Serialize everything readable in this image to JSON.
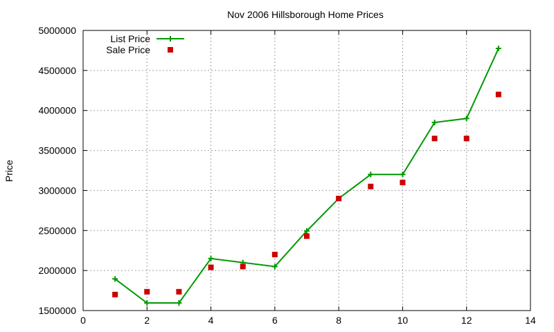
{
  "chart_data": {
    "type": "line",
    "title": "Nov 2006 Hillsborough Home Prices",
    "xlabel": "",
    "ylabel": "Price",
    "xlim": [
      0,
      14
    ],
    "ylim": [
      1500000,
      5000000
    ],
    "xticks": [
      0,
      2,
      4,
      6,
      8,
      10,
      12,
      14
    ],
    "yticks": [
      1500000,
      2000000,
      2500000,
      3000000,
      3500000,
      4000000,
      4500000,
      5000000
    ],
    "xtick_labels": [
      "0",
      "2",
      "4",
      "6",
      "8",
      "10",
      "12",
      "14"
    ],
    "ytick_labels": [
      "1500000",
      "2000000",
      "2500000",
      "3000000",
      "3500000",
      "4000000",
      "4500000",
      "5000000"
    ],
    "grid": true,
    "legend_position": "top-left",
    "series": [
      {
        "name": "List Price",
        "style": "line+plus-markers",
        "color": "#009900",
        "x": [
          1,
          2,
          3,
          4,
          5,
          6,
          7,
          8,
          9,
          10,
          11,
          12,
          13
        ],
        "values": [
          1895000,
          1595000,
          1595000,
          2150000,
          2100000,
          2050000,
          2495000,
          2900000,
          3200000,
          3200000,
          3850000,
          3900000,
          4775000
        ]
      },
      {
        "name": "Sale Price",
        "style": "square-markers",
        "color": "#cc0000",
        "x": [
          1,
          2,
          3,
          4,
          5,
          6,
          7,
          8,
          9,
          10,
          11,
          12,
          13
        ],
        "values": [
          1700000,
          1735000,
          1735000,
          2040000,
          2050000,
          2200000,
          2430000,
          2900000,
          3050000,
          3100000,
          3650000,
          3650000,
          4200000
        ]
      }
    ]
  }
}
